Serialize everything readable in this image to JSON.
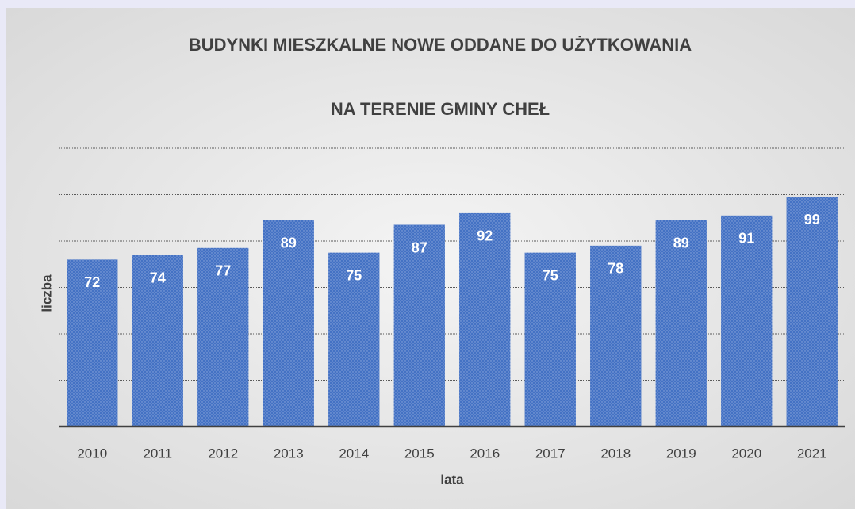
{
  "chart_data": {
    "type": "bar",
    "title": [
      "BUDYNKI MIESZKALNE NOWE ODDANE DO UŻYTKOWANIA",
      "NA TERENIE GMINY CHEŁ"
    ],
    "x_label": "lata",
    "y_label": "liczba",
    "categories": [
      "2010",
      "2011",
      "2012",
      "2013",
      "2014",
      "2015",
      "2016",
      "2017",
      "2018",
      "2019",
      "2020",
      "2021"
    ],
    "values": [
      72,
      74,
      77,
      89,
      75,
      87,
      92,
      75,
      78,
      89,
      91,
      99
    ],
    "color": "#4472c4",
    "ylim": [
      0,
      120
    ],
    "yticks": [
      0,
      20,
      40,
      60,
      80,
      100,
      120
    ],
    "grid": true
  }
}
